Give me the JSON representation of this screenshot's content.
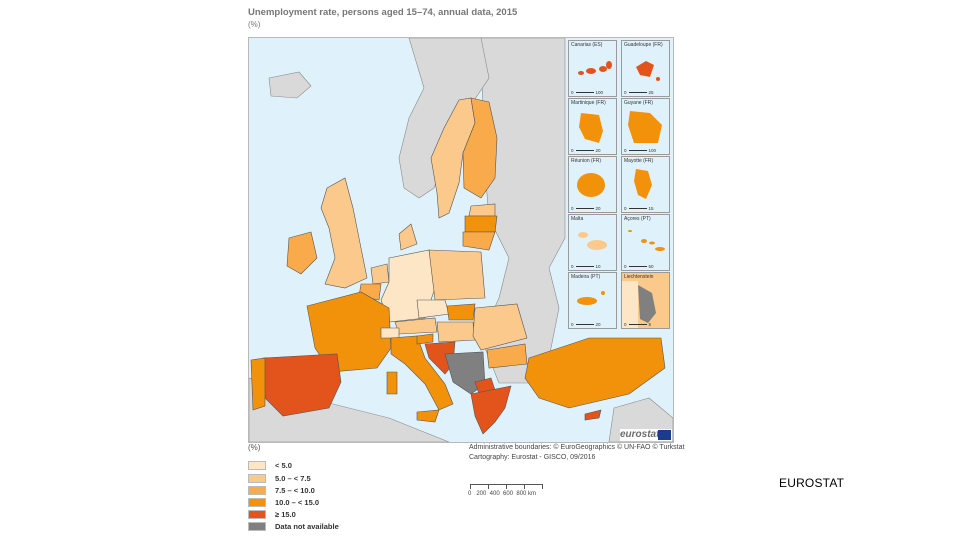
{
  "title": "Unemployment rate, persons aged 15–74, annual data, 2015",
  "unit": "(%)",
  "legend": {
    "unit": "(%)",
    "classes": [
      {
        "label": "< 5.0",
        "color": "#fde6c6"
      },
      {
        "label": "5.0 – < 7.5",
        "color": "#fbc98b"
      },
      {
        "label": "7.5 – < 10.0",
        "color": "#f9ab4c"
      },
      {
        "label": "10.0 – < 15.0",
        "color": "#f2910a"
      },
      {
        "label": "≥ 15.0",
        "color": "#e2541c"
      },
      {
        "label": "Data not available",
        "color": "#808080"
      }
    ]
  },
  "insets": [
    {
      "name": "Canarias (ES)",
      "scale": "100"
    },
    {
      "name": "Guadeloupe (FR)",
      "scale": "25"
    },
    {
      "name": "Martinique (FR)",
      "scale": "20"
    },
    {
      "name": "Guyane (FR)",
      "scale": "100"
    },
    {
      "name": "Réunion (FR)",
      "scale": "20"
    },
    {
      "name": "Mayotte (FR)",
      "scale": "15"
    },
    {
      "name": "Malta",
      "scale": "10"
    },
    {
      "name": "Açores (PT)",
      "scale": "50"
    },
    {
      "name": "Madeira (PT)",
      "scale": "20"
    },
    {
      "name": "Liechtenstein",
      "scale": "5"
    }
  ],
  "attribution": {
    "line1": "Administrative boundaries: © EuroGeographics © UN-FAO © Turkstat",
    "line2": "Cartography: Eurostat - GISCO, 09/2016"
  },
  "scalebar": {
    "labels": "0   200  400  600  800 km"
  },
  "logo_text": "eurostat",
  "source": "EUROSTAT",
  "colors": {
    "sea": "#dff2fb",
    "non_eu_land": "#d9d9d9",
    "border": "#555555"
  }
}
